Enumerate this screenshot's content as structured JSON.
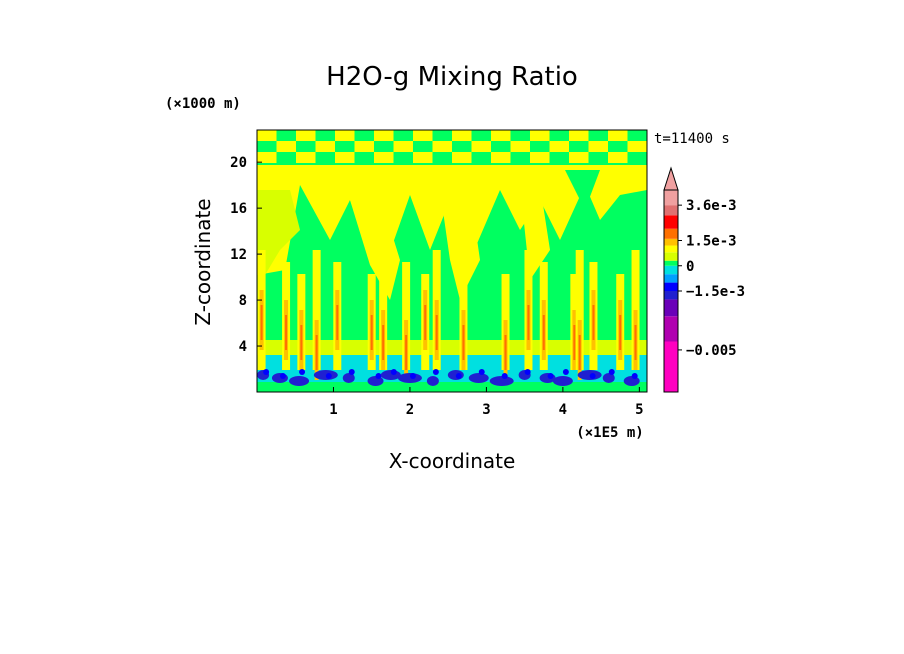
{
  "chart_data": {
    "type": "heatmap",
    "title": "H2O-g Mixing Ratio",
    "xlabel": "X-coordinate",
    "ylabel": "Z-coordinate",
    "x_unit": "(×1E5 m)",
    "y_unit": "(×1000 m)",
    "time_label": "t=11400 s",
    "xlim": [
      0,
      5.1
    ],
    "ylim": [
      0,
      22.8
    ],
    "x_ticks": [
      1,
      2,
      3,
      4,
      5
    ],
    "y_ticks": [
      4,
      8,
      12,
      16,
      20
    ],
    "colorbar": {
      "labels": [
        {
          "text": "3.6e-3",
          "value": 0.0036
        },
        {
          "text": "1.5e-3",
          "value": 0.0015
        },
        {
          "text": "0",
          "value": 0
        },
        {
          "text": "−1.5e-3",
          "value": -0.0015
        },
        {
          "text": "−0.005",
          "value": -0.005
        }
      ],
      "levels": [
        {
          "min": -0.0075,
          "max": -0.0045,
          "color": "#ff00c0"
        },
        {
          "min": -0.0045,
          "max": -0.003,
          "color": "#b000b0"
        },
        {
          "min": -0.003,
          "max": -0.002,
          "color": "#6a00b8"
        },
        {
          "min": -0.002,
          "max": -0.0015,
          "color": "#2020d0"
        },
        {
          "min": -0.0015,
          "max": -0.001,
          "color": "#0000ff"
        },
        {
          "min": -0.001,
          "max": -0.0005,
          "color": "#00a0ff"
        },
        {
          "min": -0.0005,
          "max": 0.0,
          "color": "#00e0e0"
        },
        {
          "min": 0.0,
          "max": 0.0003,
          "color": "#00ff60"
        },
        {
          "min": 0.0003,
          "max": 0.0008,
          "color": "#d8ff00"
        },
        {
          "min": 0.0008,
          "max": 0.0012,
          "color": "#ffff00"
        },
        {
          "min": 0.0012,
          "max": 0.0016,
          "color": "#ffc000"
        },
        {
          "min": 0.0016,
          "max": 0.0022,
          "color": "#ff7000"
        },
        {
          "min": 0.0022,
          "max": 0.003,
          "color": "#ff0000"
        },
        {
          "min": 0.003,
          "max": 0.0036,
          "color": "#e07070"
        },
        {
          "min": 0.0036,
          "max": 0.0045,
          "color": "#f0a0a0"
        }
      ]
    },
    "plumes_x": [
      0.06,
      0.38,
      0.58,
      0.78,
      1.05,
      1.5,
      1.65,
      1.95,
      2.2,
      2.35,
      2.7,
      3.25,
      3.55,
      3.75,
      4.15,
      4.22,
      4.4,
      4.75,
      4.95
    ]
  }
}
